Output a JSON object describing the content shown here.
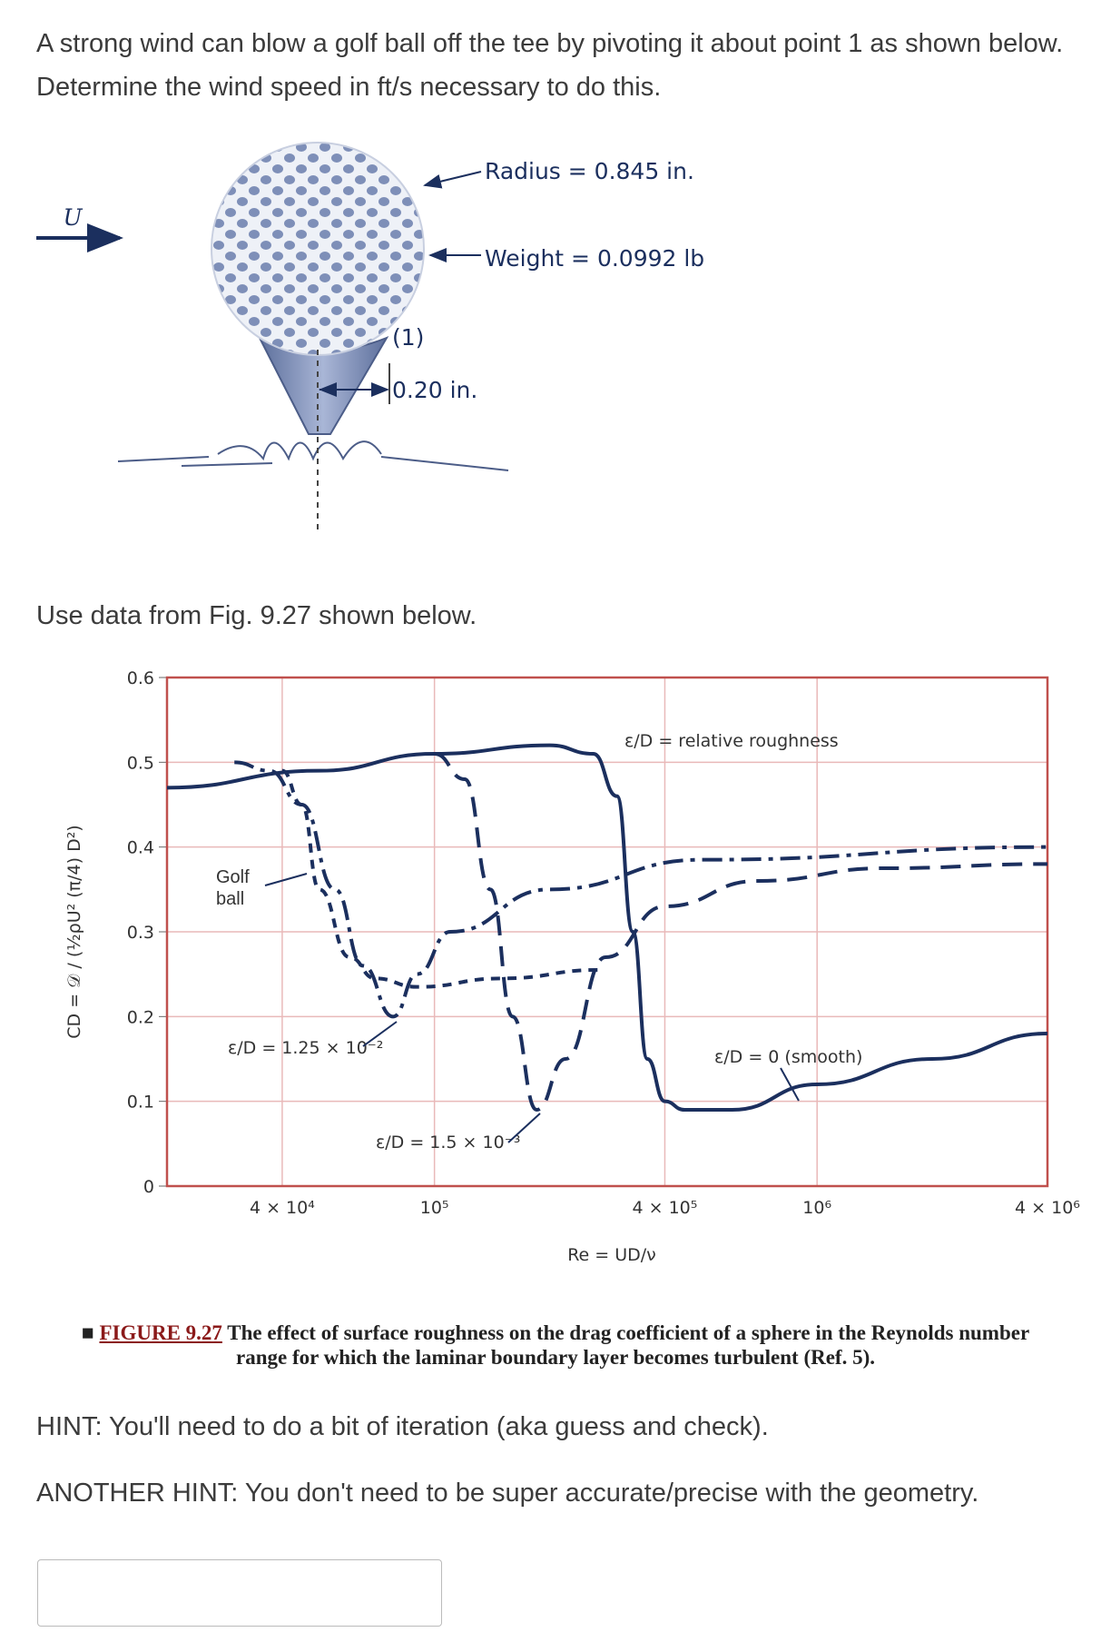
{
  "question": "A strong wind can blow a golf ball off the tee by pivoting it about point 1 as shown below. Determine the wind speed in ft/s necessary to do this.",
  "diagram": {
    "velocity": "U",
    "radius": "Radius = 0.845 in.",
    "weight": "Weight = 0.0992 lb",
    "point": "(1)",
    "offset": "0.20 in."
  },
  "instruction": "Use data from Fig. 9.27 shown below.",
  "chart_data": {
    "type": "line",
    "x_scale": "log",
    "xlabel": "Re = UD/ν",
    "ylabel": "CD = 𝒟 / (½ρU² (π/4) D²)",
    "annotation": "ε/D = relative roughness",
    "xlim": [
      20000,
      4000000
    ],
    "ylim": [
      0,
      0.6
    ],
    "xticks": [
      {
        "value": 40000,
        "label": "4 × 10⁴"
      },
      {
        "value": 100000,
        "label": "10⁵"
      },
      {
        "value": 400000,
        "label": "4 × 10⁵"
      },
      {
        "value": 1000000,
        "label": "10⁶"
      },
      {
        "value": 4000000,
        "label": "4 × 10⁶"
      }
    ],
    "yticks": [
      0,
      0.1,
      0.2,
      0.3,
      0.4,
      0.5,
      0.6
    ],
    "grid": true,
    "grid_color": "#e9b9b9",
    "frame_color": "#c0504d",
    "series": [
      {
        "name": "ε/D = 0 (smooth)",
        "color": "#1b2f5e",
        "dash": "none",
        "x": [
          20000,
          50000,
          100000,
          200000,
          260000,
          300000,
          330000,
          360000,
          400000,
          450000,
          600000,
          1000000,
          2000000,
          4000000
        ],
        "values": [
          0.47,
          0.49,
          0.51,
          0.52,
          0.51,
          0.46,
          0.3,
          0.15,
          0.1,
          0.09,
          0.09,
          0.12,
          0.15,
          0.18
        ]
      },
      {
        "name": "ε/D = 1.5 × 10⁻³",
        "color": "#1b2f5e",
        "dash": "22,12",
        "x": [
          100000,
          120000,
          140000,
          160000,
          185000,
          220000,
          280000,
          400000,
          700000,
          1500000,
          4000000
        ],
        "values": [
          0.51,
          0.48,
          0.35,
          0.2,
          0.09,
          0.15,
          0.27,
          0.33,
          0.36,
          0.375,
          0.38
        ]
      },
      {
        "name": "ε/D = 1.25 × 10⁻²",
        "color": "#1b2f5e",
        "dash": "22,8,5,8",
        "x": [
          30000,
          37000,
          45000,
          55000,
          65000,
          78000,
          90000,
          110000,
          200000,
          500000,
          4000000
        ],
        "values": [
          0.5,
          0.49,
          0.45,
          0.35,
          0.26,
          0.2,
          0.25,
          0.3,
          0.35,
          0.385,
          0.4
        ]
      },
      {
        "name": "Golf ball",
        "color": "#1b2f5e",
        "dash": "10,8",
        "x": [
          40000,
          45000,
          50000,
          60000,
          70000,
          90000,
          150000,
          270000
        ],
        "values": [
          0.49,
          0.45,
          0.35,
          0.27,
          0.245,
          0.235,
          0.245,
          0.255
        ]
      }
    ]
  },
  "caption": {
    "label": "FIGURE 9.27",
    "text": "The effect of surface roughness on the drag coefficient of a sphere in the Reynolds number range for which the laminar boundary layer becomes turbulent (Ref. 5)."
  },
  "hints": [
    "HINT: You'll need to do a bit of iteration (aka guess and check).",
    "ANOTHER HINT: You don't need to be super accurate/precise with the geometry."
  ]
}
